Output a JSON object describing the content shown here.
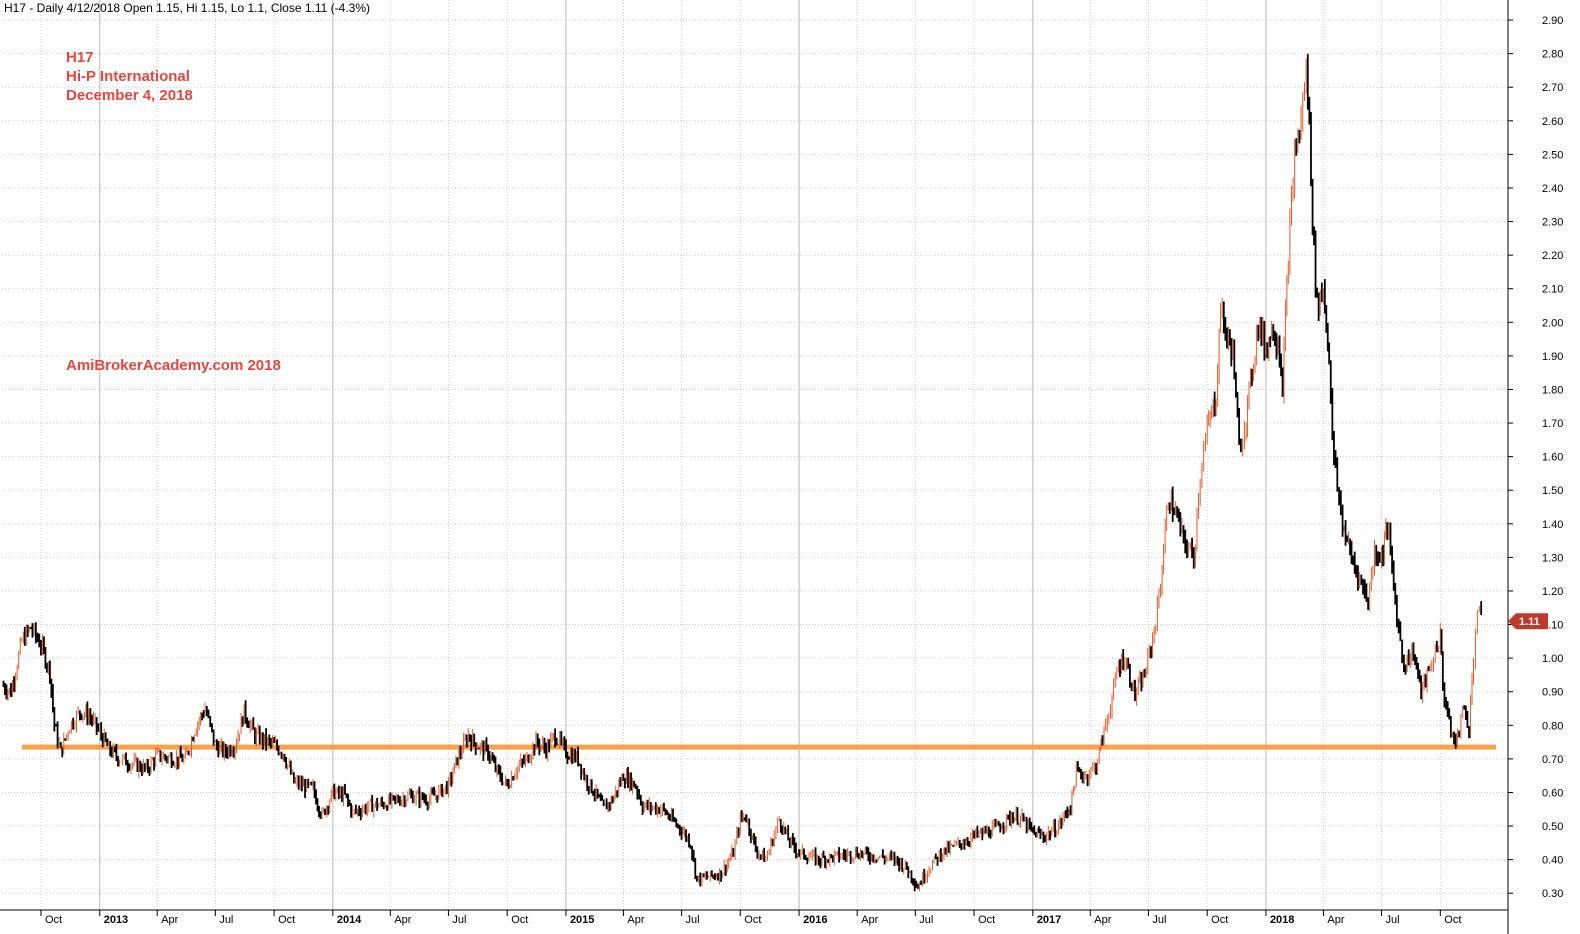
{
  "header": {
    "text": "H17 - Daily 4/12/2018 Open 1.15, Hi 1.15, Lo 1.1, Close 1.11 (-4.3%)"
  },
  "annotations": {
    "ticker": "H17",
    "company": "Hi-P International",
    "date": "December 4, 2018",
    "watermark": "AmiBrokerAcademy.com  2018"
  },
  "colors": {
    "annotation": "#e8453c",
    "support_line": "#f7a24a",
    "up_candle": "#e05a28",
    "down_candle": "#000000",
    "last_price_marker": "#c0392b",
    "grid": "#cfcfcf"
  },
  "chart_data": {
    "type": "line",
    "x_type": "date",
    "ylim": [
      0.25,
      2.93
    ],
    "y_ticks": [
      "0.30",
      "0.40",
      "0.50",
      "0.60",
      "0.70",
      "0.80",
      "0.90",
      "1.00",
      "1.10",
      "1.20",
      "1.30",
      "1.40",
      "1.50",
      "1.60",
      "1.70",
      "1.80",
      "1.90",
      "2.00",
      "2.10",
      "2.20",
      "2.30",
      "2.40",
      "2.50",
      "2.60",
      "2.70",
      "2.80",
      "2.90"
    ],
    "x_ticks": [
      {
        "date": "2012-10-01",
        "label": "Oct",
        "year": false
      },
      {
        "date": "2013-01-01",
        "label": "2013",
        "year": true
      },
      {
        "date": "2013-04-01",
        "label": "Apr",
        "year": false
      },
      {
        "date": "2013-07-01",
        "label": "Jul",
        "year": false
      },
      {
        "date": "2013-10-01",
        "label": "Oct",
        "year": false
      },
      {
        "date": "2014-01-01",
        "label": "2014",
        "year": true
      },
      {
        "date": "2014-04-01",
        "label": "Apr",
        "year": false
      },
      {
        "date": "2014-07-01",
        "label": "Jul",
        "year": false
      },
      {
        "date": "2014-10-01",
        "label": "Oct",
        "year": false
      },
      {
        "date": "2015-01-01",
        "label": "2015",
        "year": true
      },
      {
        "date": "2015-04-01",
        "label": "Apr",
        "year": false
      },
      {
        "date": "2015-07-01",
        "label": "Jul",
        "year": false
      },
      {
        "date": "2015-10-01",
        "label": "Oct",
        "year": false
      },
      {
        "date": "2016-01-01",
        "label": "2016",
        "year": true
      },
      {
        "date": "2016-04-01",
        "label": "Apr",
        "year": false
      },
      {
        "date": "2016-07-01",
        "label": "Jul",
        "year": false
      },
      {
        "date": "2016-10-01",
        "label": "Oct",
        "year": false
      },
      {
        "date": "2017-01-01",
        "label": "2017",
        "year": true
      },
      {
        "date": "2017-04-01",
        "label": "Apr",
        "year": false
      },
      {
        "date": "2017-07-01",
        "label": "Jul",
        "year": false
      },
      {
        "date": "2017-10-01",
        "label": "Oct",
        "year": false
      },
      {
        "date": "2018-01-01",
        "label": "2018",
        "year": true
      },
      {
        "date": "2018-04-01",
        "label": "Apr",
        "year": false
      },
      {
        "date": "2018-07-01",
        "label": "Jul",
        "year": false
      },
      {
        "date": "2018-10-01",
        "label": "Oct",
        "year": false
      }
    ],
    "x_range": [
      "2012-08-01",
      "2019-01-15"
    ],
    "support_level": 0.735,
    "last_close_label": "1.11",
    "last_close": 1.11,
    "grid": true,
    "series": [
      {
        "points": [
          [
            "2012-08-01",
            0.92
          ],
          [
            "2012-08-15",
            0.9
          ],
          [
            "2012-09-01",
            1.05
          ],
          [
            "2012-09-15",
            1.09
          ],
          [
            "2012-10-01",
            1.04
          ],
          [
            "2012-10-15",
            0.96
          ],
          [
            "2012-10-22",
            0.8
          ],
          [
            "2012-11-01",
            0.72
          ],
          [
            "2012-11-15",
            0.8
          ],
          [
            "2012-12-01",
            0.84
          ],
          [
            "2012-12-15",
            0.83
          ],
          [
            "2013-01-01",
            0.78
          ],
          [
            "2013-01-15",
            0.73
          ],
          [
            "2013-02-01",
            0.7
          ],
          [
            "2013-03-01",
            0.68
          ],
          [
            "2013-03-15",
            0.67
          ],
          [
            "2013-04-01",
            0.71
          ],
          [
            "2013-05-01",
            0.7
          ],
          [
            "2013-05-15",
            0.7
          ],
          [
            "2013-06-01",
            0.8
          ],
          [
            "2013-06-15",
            0.85
          ],
          [
            "2013-07-01",
            0.74
          ],
          [
            "2013-07-15",
            0.72
          ],
          [
            "2013-08-01",
            0.74
          ],
          [
            "2013-08-15",
            0.84
          ],
          [
            "2013-09-01",
            0.77
          ],
          [
            "2013-10-01",
            0.74
          ],
          [
            "2013-10-15",
            0.72
          ],
          [
            "2013-11-01",
            0.63
          ],
          [
            "2013-12-01",
            0.61
          ],
          [
            "2013-12-15",
            0.53
          ],
          [
            "2014-01-01",
            0.6
          ],
          [
            "2014-01-20",
            0.59
          ],
          [
            "2014-02-01",
            0.54
          ],
          [
            "2014-03-01",
            0.56
          ],
          [
            "2014-04-01",
            0.57
          ],
          [
            "2014-05-01",
            0.59
          ],
          [
            "2014-06-01",
            0.58
          ],
          [
            "2014-07-01",
            0.62
          ],
          [
            "2014-07-15",
            0.7
          ],
          [
            "2014-08-01",
            0.77
          ],
          [
            "2014-08-15",
            0.74
          ],
          [
            "2014-09-01",
            0.72
          ],
          [
            "2014-09-15",
            0.66
          ],
          [
            "2014-10-01",
            0.62
          ],
          [
            "2014-10-15",
            0.67
          ],
          [
            "2014-11-01",
            0.7
          ],
          [
            "2014-11-15",
            0.75
          ],
          [
            "2014-12-01",
            0.73
          ],
          [
            "2014-12-15",
            0.77
          ],
          [
            "2015-01-01",
            0.72
          ],
          [
            "2015-01-20",
            0.7
          ],
          [
            "2015-02-01",
            0.64
          ],
          [
            "2015-02-15",
            0.6
          ],
          [
            "2015-03-01",
            0.55
          ],
          [
            "2015-03-15",
            0.58
          ],
          [
            "2015-04-01",
            0.65
          ],
          [
            "2015-04-20",
            0.62
          ],
          [
            "2015-05-01",
            0.56
          ],
          [
            "2015-06-01",
            0.55
          ],
          [
            "2015-06-20",
            0.51
          ],
          [
            "2015-07-01",
            0.49
          ],
          [
            "2015-07-15",
            0.45
          ],
          [
            "2015-07-25",
            0.34
          ],
          [
            "2015-08-15",
            0.35
          ],
          [
            "2015-09-01",
            0.36
          ],
          [
            "2015-09-20",
            0.42
          ],
          [
            "2015-10-01",
            0.52
          ],
          [
            "2015-10-10",
            0.53
          ],
          [
            "2015-10-25",
            0.43
          ],
          [
            "2015-11-10",
            0.4
          ],
          [
            "2015-12-01",
            0.52
          ],
          [
            "2015-12-15",
            0.46
          ],
          [
            "2016-01-01",
            0.42
          ],
          [
            "2016-02-01",
            0.4
          ],
          [
            "2016-03-01",
            0.41
          ],
          [
            "2016-04-01",
            0.42
          ],
          [
            "2016-05-01",
            0.41
          ],
          [
            "2016-06-01",
            0.4
          ],
          [
            "2016-06-20",
            0.37
          ],
          [
            "2016-07-05",
            0.32
          ],
          [
            "2016-07-20",
            0.37
          ],
          [
            "2016-08-10",
            0.42
          ],
          [
            "2016-09-01",
            0.44
          ],
          [
            "2016-10-01",
            0.47
          ],
          [
            "2016-11-01",
            0.49
          ],
          [
            "2016-12-01",
            0.53
          ],
          [
            "2016-12-15",
            0.52
          ],
          [
            "2017-01-01",
            0.48
          ],
          [
            "2017-01-20",
            0.47
          ],
          [
            "2017-02-10",
            0.5
          ],
          [
            "2017-03-01",
            0.56
          ],
          [
            "2017-03-10",
            0.66
          ],
          [
            "2017-03-25",
            0.65
          ],
          [
            "2017-04-10",
            0.68
          ],
          [
            "2017-04-25",
            0.8
          ],
          [
            "2017-05-05",
            0.88
          ],
          [
            "2017-05-15",
            0.98
          ],
          [
            "2017-05-25",
            1.0
          ],
          [
            "2017-06-10",
            0.89
          ],
          [
            "2017-06-25",
            0.95
          ],
          [
            "2017-07-10",
            1.08
          ],
          [
            "2017-07-20",
            1.22
          ],
          [
            "2017-08-01",
            1.48
          ],
          [
            "2017-08-15",
            1.42
          ],
          [
            "2017-08-25",
            1.35
          ],
          [
            "2017-09-10",
            1.3
          ],
          [
            "2017-09-20",
            1.55
          ],
          [
            "2017-10-01",
            1.68
          ],
          [
            "2017-10-15",
            1.78
          ],
          [
            "2017-10-22",
            2.05
          ],
          [
            "2017-11-01",
            1.95
          ],
          [
            "2017-11-10",
            1.92
          ],
          [
            "2017-11-20",
            1.62
          ],
          [
            "2017-12-01",
            1.72
          ],
          [
            "2017-12-10",
            1.85
          ],
          [
            "2017-12-20",
            2.0
          ],
          [
            "2018-01-01",
            1.92
          ],
          [
            "2018-01-10",
            1.98
          ],
          [
            "2018-01-20",
            1.95
          ],
          [
            "2018-01-27",
            1.82
          ],
          [
            "2018-02-05",
            2.2
          ],
          [
            "2018-02-15",
            2.5
          ],
          [
            "2018-02-25",
            2.6
          ],
          [
            "2018-03-05",
            2.75
          ],
          [
            "2018-03-10",
            2.6
          ],
          [
            "2018-03-15",
            2.3
          ],
          [
            "2018-03-22",
            2.05
          ],
          [
            "2018-04-01",
            2.1
          ],
          [
            "2018-04-10",
            1.9
          ],
          [
            "2018-04-15",
            1.65
          ],
          [
            "2018-04-20",
            1.55
          ],
          [
            "2018-05-01",
            1.4
          ],
          [
            "2018-05-15",
            1.3
          ],
          [
            "2018-05-25",
            1.25
          ],
          [
            "2018-06-10",
            1.17
          ],
          [
            "2018-06-20",
            1.32
          ],
          [
            "2018-07-01",
            1.3
          ],
          [
            "2018-07-10",
            1.4
          ],
          [
            "2018-07-20",
            1.22
          ],
          [
            "2018-07-25",
            1.12
          ],
          [
            "2018-08-05",
            0.98
          ],
          [
            "2018-08-20",
            1.02
          ],
          [
            "2018-09-01",
            0.9
          ],
          [
            "2018-09-15",
            0.97
          ],
          [
            "2018-10-01",
            1.07
          ],
          [
            "2018-10-05",
            0.92
          ],
          [
            "2018-10-15",
            0.8
          ],
          [
            "2018-10-25",
            0.74
          ],
          [
            "2018-11-05",
            0.85
          ],
          [
            "2018-11-15",
            0.8
          ],
          [
            "2018-11-22",
            1.0
          ],
          [
            "2018-11-28",
            1.15
          ],
          [
            "2018-12-04",
            1.11
          ]
        ]
      }
    ]
  }
}
